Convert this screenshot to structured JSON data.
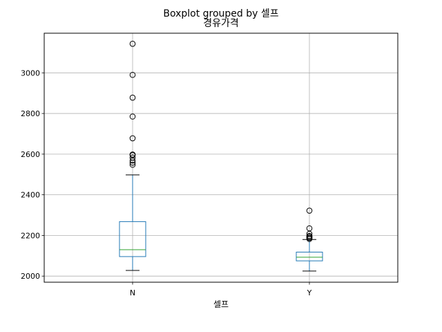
{
  "chart_data": {
    "type": "boxplot",
    "suptitle": "Boxplot grouped by 셀프",
    "title": "경유가격",
    "xlabel": "셀프",
    "ylabel": "",
    "categories": [
      "N",
      "Y"
    ],
    "ylim": [
      1970,
      3195
    ],
    "yticks": [
      2000,
      2200,
      2400,
      2600,
      2800,
      3000
    ],
    "grid": true,
    "colors": {
      "box": "#1f77b4",
      "median": "#2ca02c",
      "whisker_cap": "#000000",
      "grid": "#b0b0b0"
    },
    "boxes": [
      {
        "category": "N",
        "whisker_low": 2028,
        "q1": 2096,
        "median": 2130,
        "q3": 2268,
        "whisker_high": 2498,
        "outliers": [
          2548,
          2558,
          2568,
          2583,
          2595,
          2598,
          2678,
          2785,
          2878,
          2990,
          3143
        ]
      },
      {
        "category": "Y",
        "whisker_low": 2025,
        "q1": 2075,
        "median": 2093,
        "q3": 2118,
        "whisker_high": 2180,
        "outliers": [
          2183,
          2188,
          2193,
          2198,
          2208,
          2235,
          2322
        ]
      }
    ]
  }
}
